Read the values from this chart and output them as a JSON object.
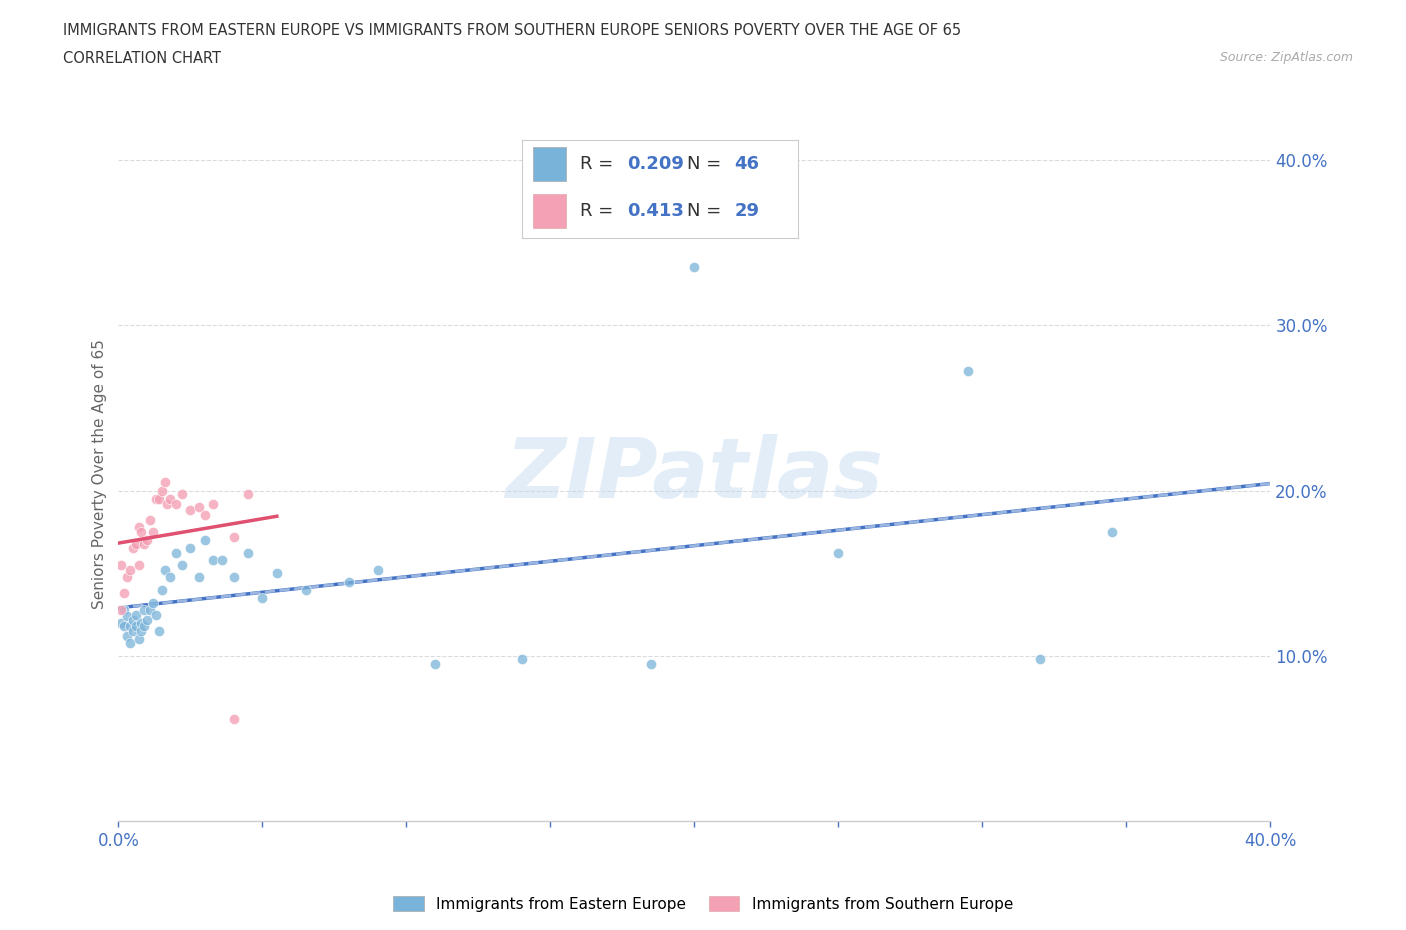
{
  "title_line1": "IMMIGRANTS FROM EASTERN EUROPE VS IMMIGRANTS FROM SOUTHERN EUROPE SENIORS POVERTY OVER THE AGE OF 65",
  "title_line2": "CORRELATION CHART",
  "source": "Source: ZipAtlas.com",
  "ylabel": "Seniors Poverty Over the Age of 65",
  "xlim": [
    0.0,
    0.4
  ],
  "ylim": [
    0.0,
    0.42
  ],
  "color_eastern": "#7ab3d9",
  "color_southern": "#f4a0b5",
  "line_color_eastern": "#4472c4",
  "line_color_southern": "#e05070",
  "line_color_eastern_dashed": "#b0c8e8",
  "watermark": "ZIPatlas",
  "R_eastern": "0.209",
  "N_eastern": "46",
  "R_southern": "0.413",
  "N_southern": "29",
  "legend_label_eastern": "Immigrants from Eastern Europe",
  "legend_label_southern": "Immigrants from Southern Europe",
  "grid_color": "#cccccc",
  "background_color": "#ffffff",
  "tick_label_color": "#4472c4",
  "legend_r_color": "#4472c4",
  "scatter_size_eastern": 55,
  "scatter_size_southern": 55,
  "eastern_x": [
    0.001,
    0.002,
    0.002,
    0.003,
    0.003,
    0.004,
    0.004,
    0.005,
    0.005,
    0.006,
    0.006,
    0.007,
    0.008,
    0.008,
    0.009,
    0.009,
    0.01,
    0.011,
    0.012,
    0.013,
    0.014,
    0.015,
    0.016,
    0.018,
    0.02,
    0.022,
    0.025,
    0.028,
    0.03,
    0.033,
    0.036,
    0.04,
    0.045,
    0.05,
    0.055,
    0.065,
    0.08,
    0.09,
    0.11,
    0.14,
    0.185,
    0.2,
    0.25,
    0.295,
    0.32,
    0.345
  ],
  "eastern_y": [
    0.12,
    0.118,
    0.128,
    0.112,
    0.124,
    0.108,
    0.118,
    0.115,
    0.122,
    0.118,
    0.125,
    0.11,
    0.12,
    0.115,
    0.128,
    0.118,
    0.122,
    0.128,
    0.132,
    0.125,
    0.115,
    0.14,
    0.152,
    0.148,
    0.162,
    0.155,
    0.165,
    0.148,
    0.17,
    0.158,
    0.158,
    0.148,
    0.162,
    0.135,
    0.15,
    0.14,
    0.145,
    0.152,
    0.095,
    0.098,
    0.095,
    0.335,
    0.162,
    0.272,
    0.098,
    0.175
  ],
  "southern_x": [
    0.001,
    0.001,
    0.002,
    0.003,
    0.004,
    0.005,
    0.006,
    0.007,
    0.007,
    0.008,
    0.009,
    0.01,
    0.011,
    0.012,
    0.013,
    0.014,
    0.015,
    0.016,
    0.017,
    0.018,
    0.02,
    0.022,
    0.025,
    0.028,
    0.03,
    0.033,
    0.04,
    0.045,
    0.04
  ],
  "southern_y": [
    0.128,
    0.155,
    0.138,
    0.148,
    0.152,
    0.165,
    0.168,
    0.155,
    0.178,
    0.175,
    0.168,
    0.17,
    0.182,
    0.175,
    0.195,
    0.195,
    0.2,
    0.205,
    0.192,
    0.195,
    0.192,
    0.198,
    0.188,
    0.19,
    0.185,
    0.192,
    0.172,
    0.198,
    0.062
  ]
}
